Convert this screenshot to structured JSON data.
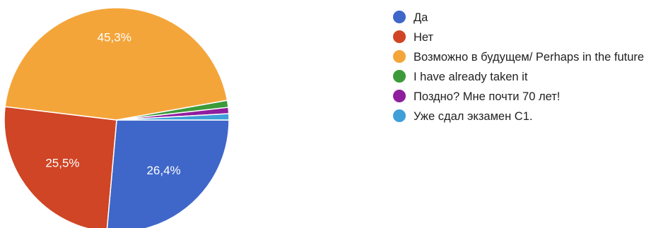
{
  "chart_data": {
    "type": "pie",
    "categories": [
      "Да",
      "Нет",
      "Возможно в будущем/ Perhaps in the future",
      "I have already taken it",
      "Поздно? Мне почти 70 лет!",
      "Уже сдал экзамен С1."
    ],
    "values": [
      26.4,
      25.5,
      45.3,
      1.0,
      0.9,
      0.9
    ],
    "data_labels": [
      "26,4%",
      "25,5%",
      "45,3%",
      "",
      "",
      ""
    ],
    "colors": [
      "#3f67c9",
      "#cf4525",
      "#f4a53a",
      "#3c9a3a",
      "#8f1e9e",
      "#3f9fd8"
    ],
    "start_angle_deg": 90,
    "direction": "clockwise",
    "legend_position": "right"
  }
}
